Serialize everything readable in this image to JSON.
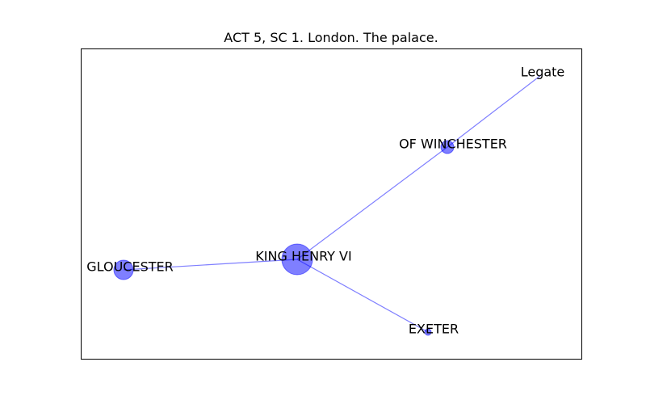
{
  "title": "ACT 5, SC 1. London. The palace.",
  "colors": {
    "node_fill": "#0000ff",
    "edge_stroke": "#0000ff",
    "frame": "#000000",
    "label": "#000000"
  },
  "nodes": [
    {
      "id": "king",
      "label": "KING HENRY VI"
    },
    {
      "id": "gloucester",
      "label": "GLOUCESTER"
    },
    {
      "id": "winchester",
      "label": "OF WINCHESTER"
    },
    {
      "id": "legate",
      "label": "Legate"
    },
    {
      "id": "exeter",
      "label": "EXETER"
    }
  ],
  "edges": [
    {
      "source": "king",
      "target": "gloucester"
    },
    {
      "source": "king",
      "target": "winchester"
    },
    {
      "source": "winchester",
      "target": "legate"
    },
    {
      "source": "king",
      "target": "exeter"
    }
  ]
}
